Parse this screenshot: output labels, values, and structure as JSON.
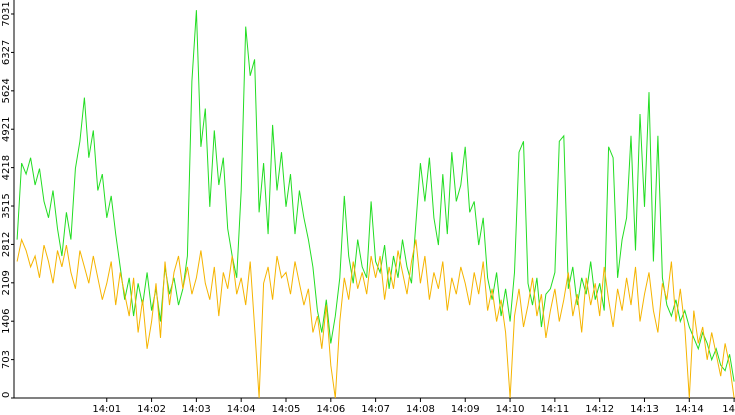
{
  "chart_data": {
    "type": "line",
    "x": [
      -1,
      -0.9,
      -0.8,
      -0.7,
      -0.6,
      -0.5,
      -0.4,
      -0.3,
      -0.2,
      -0.1,
      0,
      0.1,
      0.2,
      0.3,
      0.4,
      0.5,
      0.6,
      0.7,
      0.8,
      0.9,
      1,
      1.1,
      1.2,
      1.3,
      1.4,
      1.5,
      1.6,
      1.7,
      1.8,
      1.9,
      2,
      2.1,
      2.2,
      2.3,
      2.4,
      2.5,
      2.6,
      2.7,
      2.8,
      2.9,
      3,
      3.1,
      3.2,
      3.3,
      3.4,
      3.5,
      3.6,
      3.7,
      3.8,
      3.9,
      4,
      4.1,
      4.2,
      4.3,
      4.4,
      4.5,
      4.6,
      4.7,
      4.8,
      4.9,
      5,
      5.1,
      5.2,
      5.3,
      5.4,
      5.5,
      5.6,
      5.7,
      5.8,
      5.9,
      6,
      6.1,
      6.2,
      6.3,
      6.4,
      6.5,
      6.6,
      6.7,
      6.8,
      6.9,
      7,
      7.1,
      7.2,
      7.3,
      7.4,
      7.5,
      7.6,
      7.7,
      7.8,
      7.9,
      8,
      8.1,
      8.2,
      8.3,
      8.4,
      8.5,
      8.6,
      8.7,
      8.8,
      8.9,
      9,
      9.1,
      9.2,
      9.3,
      9.4,
      9.5,
      9.6,
      9.7,
      9.8,
      9.9,
      10,
      10.1,
      10.2,
      10.3,
      10.4,
      10.5,
      10.6,
      10.7,
      10.8,
      10.9,
      11,
      11.1,
      11.2,
      11.3,
      11.4,
      11.5,
      11.6,
      11.7,
      11.8,
      11.9,
      12,
      12.1,
      12.2,
      12.3,
      12.4,
      12.5,
      12.6,
      12.7,
      12.8,
      12.9,
      13,
      13.1,
      13.2,
      13.3,
      13.4,
      13.5,
      13.6,
      13.7,
      13.8,
      13.9,
      14,
      14.1,
      14.2,
      14.3,
      14.4,
      14.5,
      14.6,
      14.7,
      14.8,
      14.9,
      15
    ],
    "series": [
      {
        "color": "#22dd22",
        "values": [
          2900,
          4300,
          4100,
          4400,
          3900,
          4200,
          3600,
          3300,
          3800,
          3100,
          2600,
          3400,
          2900,
          4200,
          4700,
          5500,
          4400,
          4900,
          3800,
          4100,
          3300,
          3700,
          3000,
          2400,
          1800,
          2200,
          1500,
          2100,
          1700,
          2300,
          1600,
          2000,
          1400,
          2400,
          1900,
          2200,
          1700,
          2000,
          2600,
          5800,
          7100,
          4600,
          5300,
          3500,
          4900,
          3900,
          4400,
          3100,
          2600,
          2200,
          3800,
          6800,
          5900,
          6200,
          3400,
          4300,
          3000,
          5000,
          3800,
          4500,
          3500,
          4100,
          3000,
          3800,
          3300,
          2900,
          2400,
          1600,
          1200,
          1800,
          1000,
          1500,
          2200,
          3700,
          2600,
          2100,
          2900,
          2400,
          2200,
          3600,
          2500,
          2300,
          2800,
          2000,
          2600,
          2200,
          2900,
          2400,
          2100,
          3200,
          4300,
          3600,
          4400,
          3300,
          2800,
          4100,
          3000,
          4500,
          3600,
          3900,
          4600,
          3400,
          3600,
          2800,
          3300,
          2200,
          1800,
          2300,
          1500,
          2000,
          1400,
          2300,
          4500,
          4700,
          2100,
          1700,
          2200,
          1300,
          1900,
          2000,
          2300,
          4700,
          4800,
          2000,
          2400,
          1700,
          2200,
          1900,
          2500,
          1800,
          2100,
          1600,
          4600,
          4400,
          2200,
          2900,
          3300,
          4800,
          2700,
          5200,
          3500,
          5600,
          2500,
          4800,
          2200,
          1700,
          1500,
          1800,
          1400,
          1600,
          1300,
          1100,
          900,
          1200,
          1000,
          700,
          900,
          600,
          500,
          800,
          300
        ]
      },
      {
        "color": "#f5b400",
        "values": [
          2500,
          2900,
          2700,
          2400,
          2600,
          2200,
          2800,
          2500,
          2100,
          2700,
          2400,
          2800,
          2300,
          2000,
          2700,
          2400,
          2100,
          2600,
          2200,
          1800,
          2100,
          2500,
          1700,
          2300,
          1900,
          1500,
          2200,
          1200,
          1800,
          900,
          1400,
          2100,
          1100,
          2500,
          1700,
          2300,
          2600,
          2000,
          2400,
          1900,
          2200,
          2700,
          2100,
          1800,
          2400,
          1500,
          2300,
          2000,
          2600,
          1900,
          2200,
          1700,
          2500,
          1300,
          0,
          2100,
          2400,
          1800,
          2600,
          2200,
          2300,
          1900,
          2500,
          2100,
          1700,
          2000,
          1200,
          1500,
          900,
          1700,
          600,
          0,
          1400,
          2200,
          1800,
          2500,
          2000,
          2300,
          1900,
          2600,
          2200,
          2600,
          1800,
          2400,
          2000,
          2700,
          2300,
          1900,
          2500,
          2900,
          2100,
          2600,
          1800,
          2300,
          2000,
          2500,
          1600,
          2200,
          1900,
          2400,
          2100,
          1700,
          2300,
          1900,
          2500,
          1600,
          2000,
          1400,
          1800,
          1200,
          0,
          1500,
          2000,
          1300,
          1700,
          2200,
          1500,
          1900,
          1100,
          1600,
          2000,
          1400,
          1800,
          2300,
          1500,
          1900,
          1200,
          2200,
          1700,
          2100,
          1500,
          2400,
          1800,
          1300,
          2000,
          1600,
          2200,
          1700,
          2400,
          1400,
          1900,
          2300,
          1600,
          1200,
          2100,
          1800,
          2500,
          1400,
          2000,
          1300,
          0,
          1600,
          1000,
          1300,
          700,
          1200,
          800,
          400,
          1000,
          600,
          0
        ]
      }
    ],
    "xlim": [
      -1.07,
      15.02
    ],
    "xticks": [
      {
        "value": 1,
        "label": "14:01"
      },
      {
        "value": 2,
        "label": "14:02"
      },
      {
        "value": 3,
        "label": "14:03"
      },
      {
        "value": 4,
        "label": "14:04"
      },
      {
        "value": 5,
        "label": "14:05"
      },
      {
        "value": 6,
        "label": "14:06"
      },
      {
        "value": 7,
        "label": "14:07"
      },
      {
        "value": 8,
        "label": "14:08"
      },
      {
        "value": 9,
        "label": "14:09"
      },
      {
        "value": 10,
        "label": "14:10"
      },
      {
        "value": 11,
        "label": "14:11"
      },
      {
        "value": 12,
        "label": "14:12"
      },
      {
        "value": 13,
        "label": "14:13"
      },
      {
        "value": 14,
        "label": "14:14"
      },
      {
        "value": 15,
        "label": "14"
      }
    ],
    "ylim": [
      0,
      7287
    ],
    "yticks": [
      0,
      703,
      1406,
      2109,
      2812,
      3515,
      4218,
      4921,
      5624,
      6327,
      7031
    ]
  }
}
